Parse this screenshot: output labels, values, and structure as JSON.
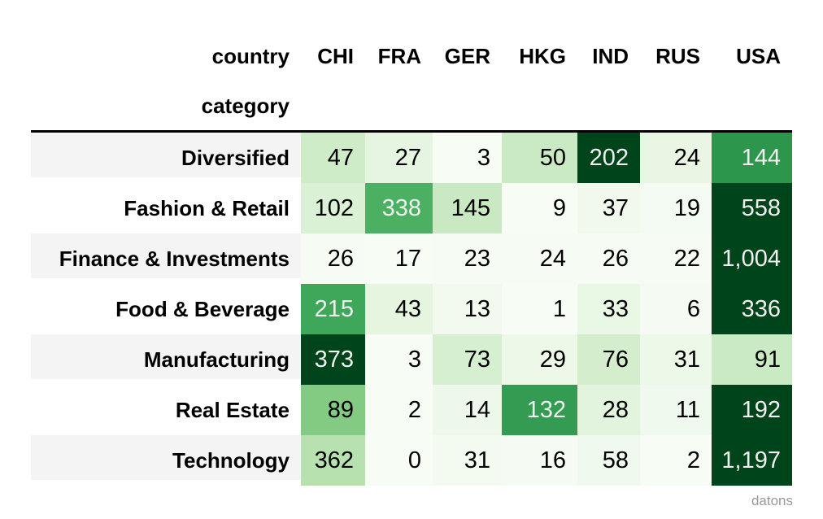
{
  "page": {
    "background": "#ffffff",
    "watermark": "datons",
    "watermark_color": "#999999"
  },
  "table": {
    "corner_label": "country",
    "index_label": "category",
    "columns": [
      "CHI",
      "FRA",
      "GER",
      "HKG",
      "IND",
      "RUS",
      "USA"
    ],
    "rows": [
      {
        "category": "Diversified",
        "values": [
          47,
          27,
          3,
          50,
          202,
          24,
          144
        ]
      },
      {
        "category": "Fashion & Retail",
        "values": [
          102,
          338,
          145,
          9,
          37,
          19,
          558
        ]
      },
      {
        "category": "Finance & Investments",
        "values": [
          26,
          17,
          23,
          24,
          26,
          22,
          1004
        ]
      },
      {
        "category": "Food & Beverage",
        "values": [
          215,
          43,
          13,
          1,
          33,
          6,
          336
        ]
      },
      {
        "category": "Manufacturing",
        "values": [
          373,
          3,
          73,
          29,
          76,
          31,
          91
        ]
      },
      {
        "category": "Real Estate",
        "values": [
          89,
          2,
          14,
          132,
          28,
          11,
          192
        ]
      },
      {
        "category": "Technology",
        "values": [
          362,
          0,
          31,
          16,
          58,
          2,
          1197
        ]
      }
    ],
    "style": {
      "stripe_color": "#f4f4f4",
      "header_rule_color": "#000000",
      "light_text": "#f1f0f0",
      "dark_text": "#000000",
      "text_color_threshold": 0.408,
      "colormap_name": "Greens",
      "colormap_stops": [
        "#f7fcf5",
        "#e5f5e0",
        "#c7e9c0",
        "#a1d99b",
        "#74c476",
        "#41ab5d",
        "#238b45",
        "#006d2c",
        "#00441b"
      ],
      "normalize": "per-row"
    }
  },
  "chart_data": {
    "type": "heatmap",
    "x_title": "country",
    "y_title": "category",
    "columns": [
      "CHI",
      "FRA",
      "GER",
      "HKG",
      "IND",
      "RUS",
      "USA"
    ],
    "rows": [
      "Diversified",
      "Fashion & Retail",
      "Finance & Investments",
      "Food & Beverage",
      "Manufacturing",
      "Real Estate",
      "Technology"
    ],
    "values": [
      [
        47,
        27,
        3,
        50,
        202,
        24,
        144
      ],
      [
        102,
        338,
        145,
        9,
        37,
        19,
        558
      ],
      [
        26,
        17,
        23,
        24,
        26,
        22,
        1004
      ],
      [
        215,
        43,
        13,
        1,
        33,
        6,
        336
      ],
      [
        373,
        3,
        73,
        29,
        76,
        31,
        91
      ],
      [
        89,
        2,
        14,
        132,
        28,
        11,
        192
      ],
      [
        362,
        0,
        31,
        16,
        58,
        2,
        1197
      ]
    ],
    "colormap": "Greens",
    "normalization": "per-row",
    "legend": "none",
    "annotation": "datons"
  }
}
